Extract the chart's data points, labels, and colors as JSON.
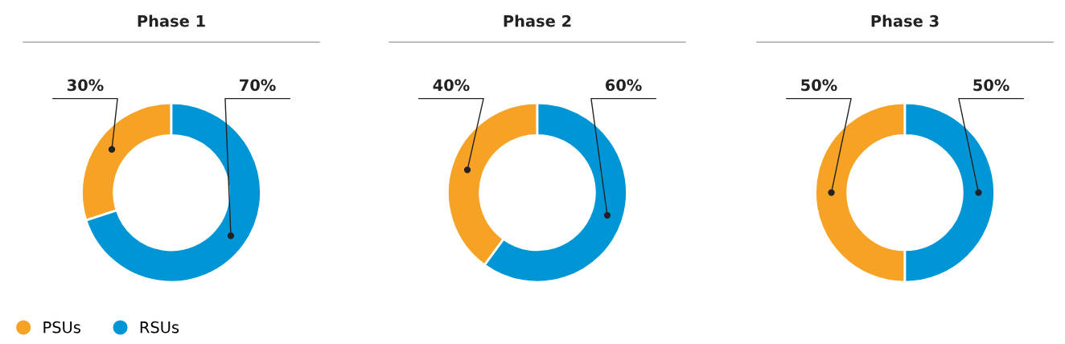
{
  "chart_data": [
    {
      "type": "donut",
      "title": "Phase 1",
      "categories": [
        "PSUs",
        "RSUs"
      ],
      "values": [
        30,
        70
      ],
      "colors": [
        "#f6a224",
        "#0096d6"
      ],
      "value_labels": [
        "30%",
        "70%"
      ],
      "legend": "bottom left"
    },
    {
      "type": "donut",
      "title": "Phase 2",
      "values": [
        40,
        60
      ],
      "colors": [
        "#f6a224",
        "#0096d6"
      ],
      "value_labels": [
        "40%",
        "60%"
      ]
    },
    {
      "type": "donut",
      "title": "Phase 3",
      "values": [
        50,
        50
      ],
      "colors": [
        "#f6a224",
        "#0096d6"
      ],
      "value_labels": [
        "50%",
        "50%"
      ]
    }
  ]
}
